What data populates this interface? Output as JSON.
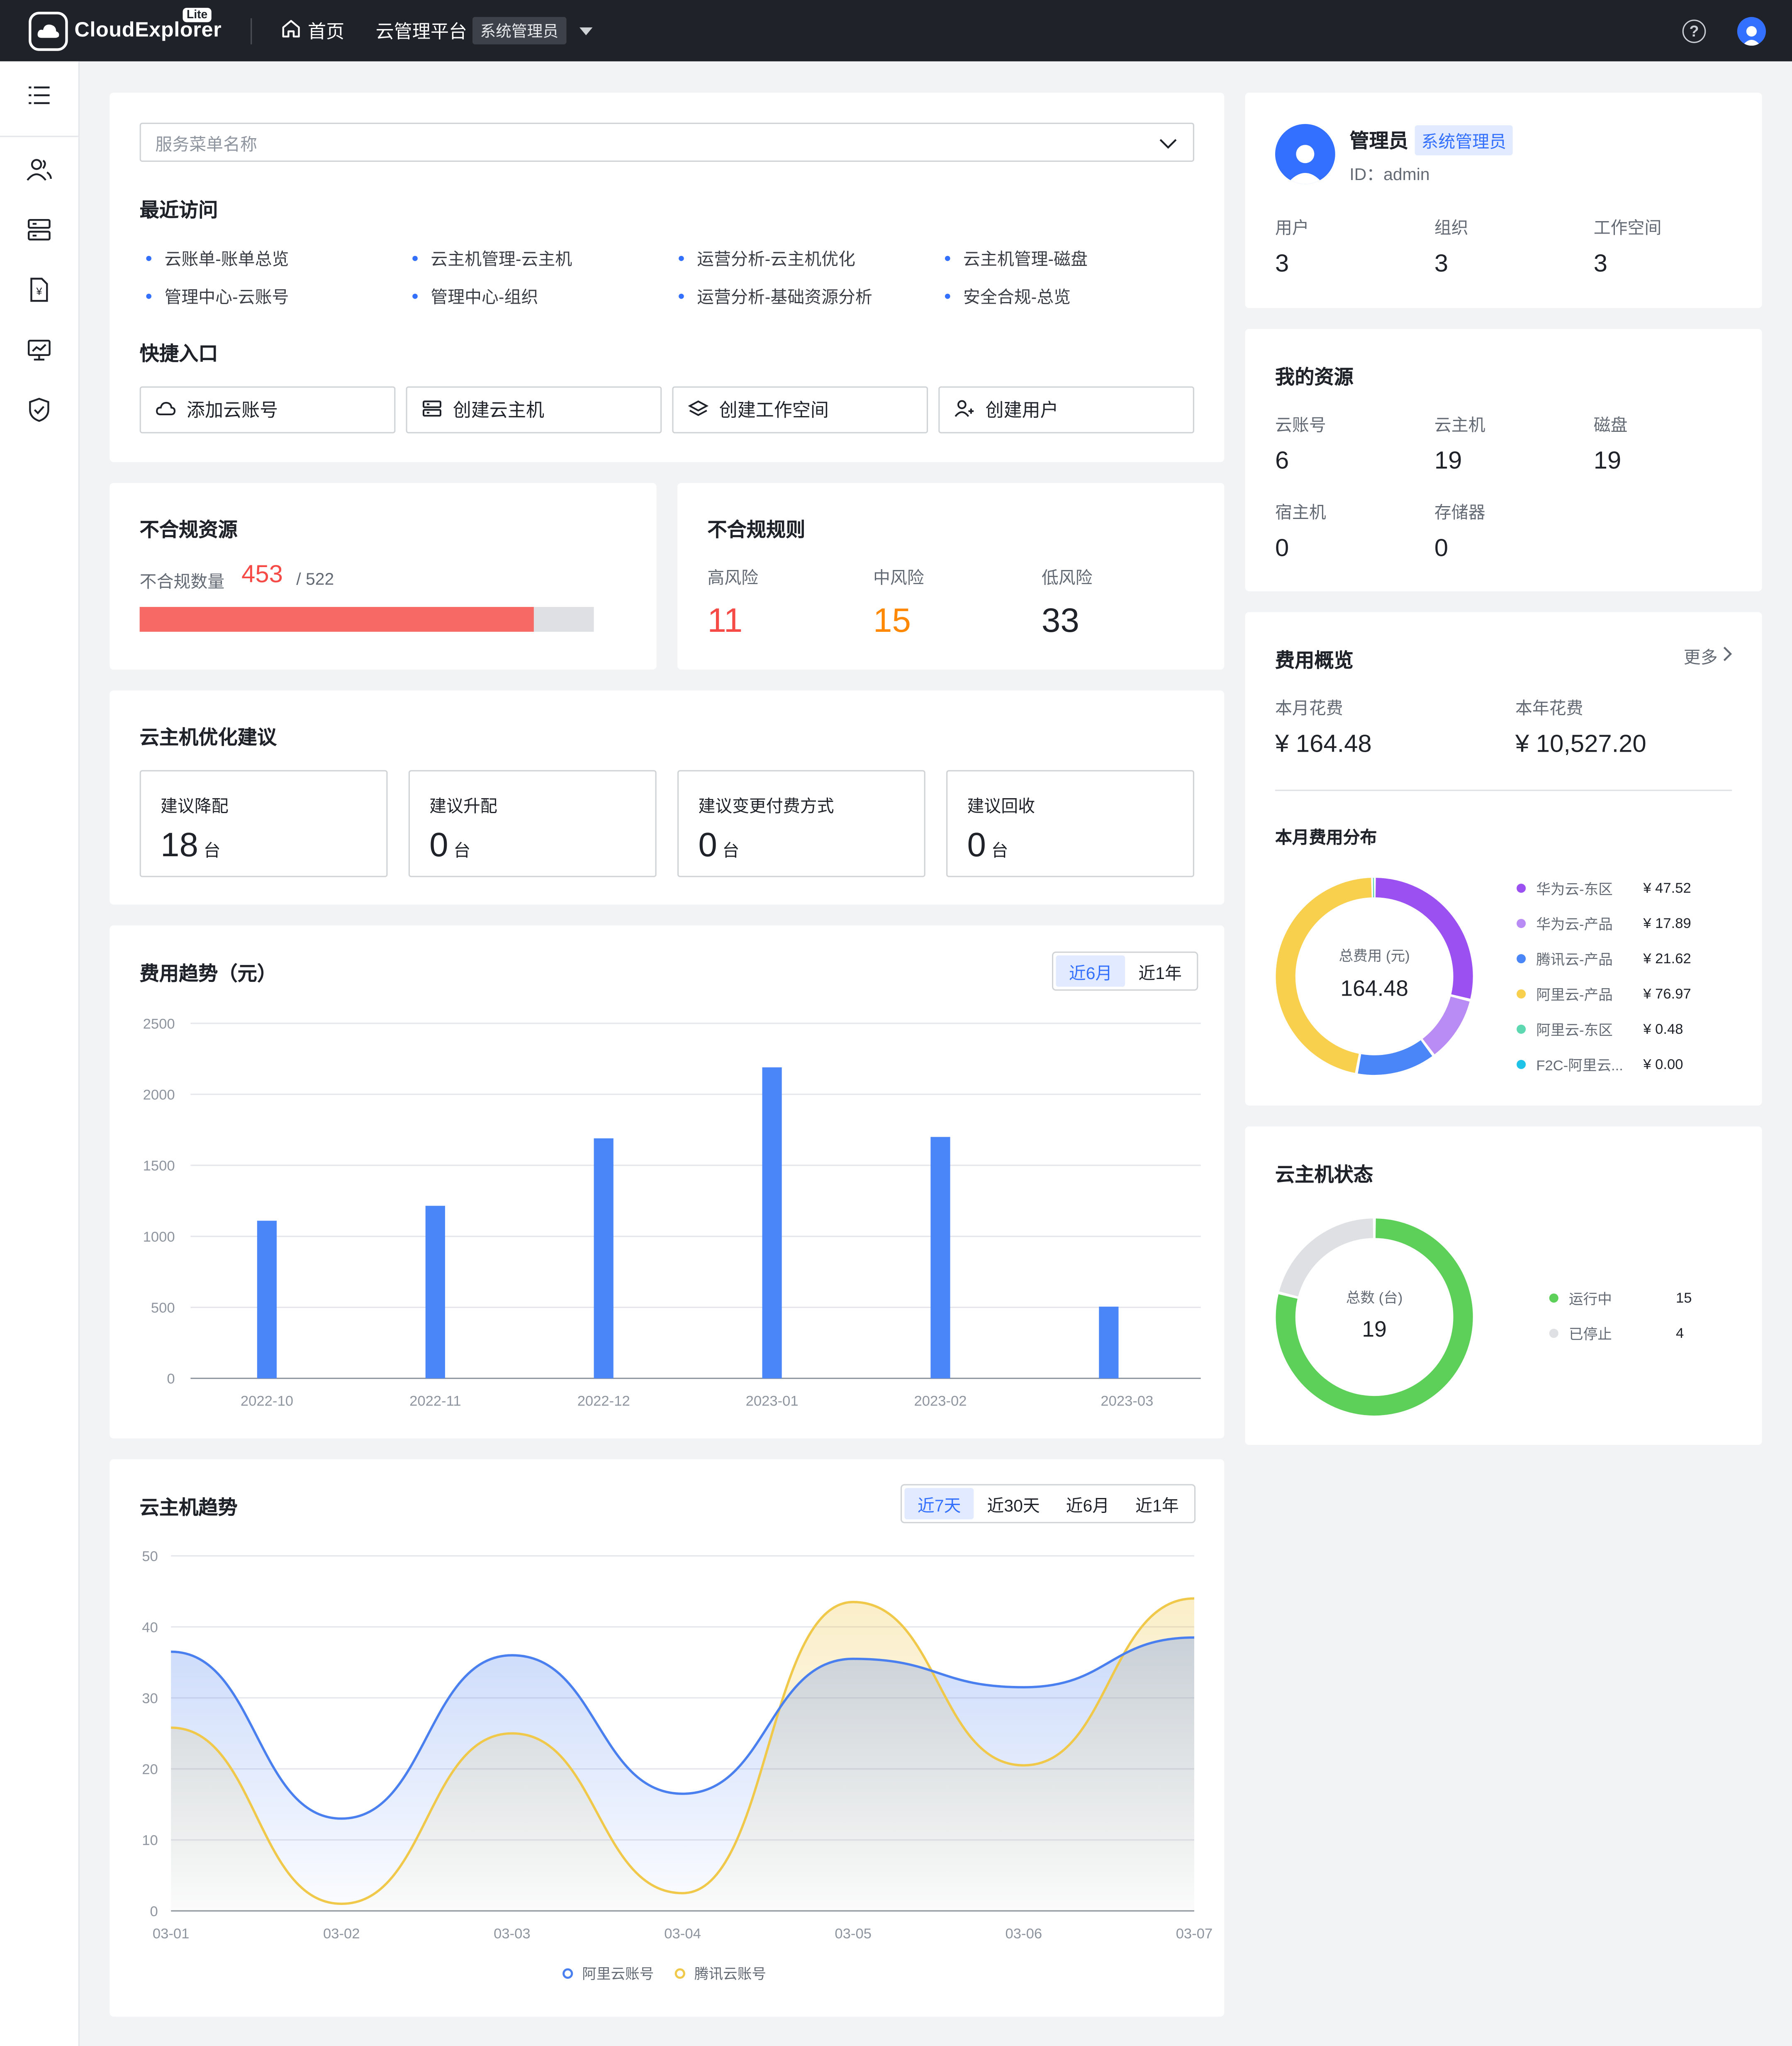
{
  "topbar": {
    "logo_text": "CloudExplorer",
    "logo_badge": "Lite",
    "home_label": "首页",
    "platform_label": "云管理平台",
    "role_chip": "系统管理员"
  },
  "sidebar": {
    "items": [
      {
        "icon": "users-icon"
      },
      {
        "icon": "server-icon"
      },
      {
        "icon": "bill-icon"
      },
      {
        "icon": "monitor-chart-icon"
      },
      {
        "icon": "shield-icon"
      }
    ]
  },
  "services": {
    "search_placeholder": "服务菜单名称",
    "recent_title": "最近访问",
    "recent": [
      "云账单-账单总览",
      "云主机管理-云主机",
      "运营分析-云主机优化",
      "云主机管理-磁盘",
      "管理中心-云账号",
      "管理中心-组织",
      "运营分析-基础资源分析",
      "安全合规-总览"
    ],
    "quick_title": "快捷入口",
    "quick": [
      {
        "label": "添加云账号",
        "icon": "cloud-icon"
      },
      {
        "label": "创建云主机",
        "icon": "server-icon"
      },
      {
        "label": "创建工作空间",
        "icon": "layers-icon"
      },
      {
        "label": "创建用户",
        "icon": "user-add-icon"
      }
    ]
  },
  "noncompliance": {
    "title": "不合规资源",
    "count_label": "不合规数量",
    "count": "453",
    "total": "/ 522",
    "ratio": 0.868,
    "colors": {
      "fill": "#f76964",
      "track": "#dee0e3"
    }
  },
  "rules": {
    "title": "不合规规则",
    "items": [
      {
        "label": "高风险",
        "value": "11",
        "color": "#f54a45"
      },
      {
        "label": "中风险",
        "value": "15",
        "color": "#ff8800"
      },
      {
        "label": "低风险",
        "value": "33",
        "color": "#1f2329"
      }
    ]
  },
  "optimization": {
    "title": "云主机优化建议",
    "items": [
      {
        "label": "建议降配",
        "value": "18",
        "unit": "台"
      },
      {
        "label": "建议升配",
        "value": "0",
        "unit": "台"
      },
      {
        "label": "建议变更付费方式",
        "value": "0",
        "unit": "台"
      },
      {
        "label": "建议回收",
        "value": "0",
        "unit": "台"
      }
    ]
  },
  "cost_trend": {
    "title": "费用趋势（元）",
    "tabs": [
      "近6月",
      "近1年"
    ],
    "active_tab": 0
  },
  "vm_trend": {
    "title": "云主机趋势",
    "tabs": [
      "近7天",
      "近30天",
      "近6月",
      "近1年"
    ],
    "active_tab": 0
  },
  "chart_data": [
    {
      "type": "bar",
      "categories": [
        "2022-10",
        "2022-11",
        "2022-12",
        "2023-01",
        "2023-02",
        "2023-03"
      ],
      "values": [
        1110,
        1215,
        1690,
        2190,
        1700,
        505
      ],
      "ylim": [
        0,
        2500
      ],
      "yticks": [
        0,
        500,
        1000,
        1500,
        2000,
        2500
      ],
      "grid": true,
      "color": "#4a86f7"
    },
    {
      "type": "area",
      "categories": [
        "03-01",
        "03-02",
        "03-03",
        "03-04",
        "03-05",
        "03-06",
        "03-07"
      ],
      "series": [
        {
          "name": "阿里云账号",
          "values": [
            36.5,
            13,
            36,
            16.5,
            35.5,
            31.5,
            38.5
          ],
          "color": "#4a7ff0"
        },
        {
          "name": "腾讯云账号",
          "values": [
            25.8,
            1,
            25,
            2.5,
            43.5,
            20.5,
            44
          ],
          "color": "#f0c84a"
        }
      ],
      "ylim": [
        0,
        50
      ],
      "yticks": [
        0,
        10,
        20,
        30,
        40,
        50
      ],
      "grid": true,
      "legend": "bottom"
    }
  ],
  "profile": {
    "name": "管理员",
    "role": "系统管理员",
    "id_label": "ID：admin",
    "stats": [
      {
        "label": "用户",
        "value": "3"
      },
      {
        "label": "组织",
        "value": "3"
      },
      {
        "label": "工作空间",
        "value": "3"
      }
    ]
  },
  "resources": {
    "title": "我的资源",
    "items": [
      {
        "label": "云账号",
        "value": "6"
      },
      {
        "label": "云主机",
        "value": "19"
      },
      {
        "label": "磁盘",
        "value": "19"
      },
      {
        "label": "宿主机",
        "value": "0"
      },
      {
        "label": "存储器",
        "value": "0"
      }
    ]
  },
  "cost_overview": {
    "title": "费用概览",
    "more": "更多",
    "month_label": "本月花费",
    "month_value": "¥ 164.48",
    "year_label": "本年花费",
    "year_value": "¥ 10,527.20",
    "dist_title": "本月费用分布",
    "donut_label": "总费用 (元)",
    "donut_value": "164.48",
    "slices": [
      {
        "name": "华为云-东区",
        "value": 47.52,
        "display": "¥ 47.52",
        "color": "#9b51f2"
      },
      {
        "name": "华为云-产品",
        "value": 17.89,
        "display": "¥ 17.89",
        "color": "#b98cf5"
      },
      {
        "name": "腾讯云-产品",
        "value": 21.62,
        "display": "¥ 21.62",
        "color": "#4a86f7"
      },
      {
        "name": "阿里云-产品",
        "value": 76.97,
        "display": "¥ 76.97",
        "color": "#f8d04e"
      },
      {
        "name": "阿里云-东区",
        "value": 0.48,
        "display": "¥ 0.48",
        "color": "#5ed8b0"
      },
      {
        "name": "F2C-阿里云...",
        "value": 0.0,
        "display": "¥ 0.00",
        "color": "#20c3e8"
      }
    ]
  },
  "vm_status": {
    "title": "云主机状态",
    "donut_label": "总数 (台)",
    "donut_value": "19",
    "slices": [
      {
        "name": "运行中",
        "value": 15,
        "color": "#5dd05a"
      },
      {
        "name": "已停止",
        "value": 4,
        "color": "#dee0e3"
      }
    ]
  }
}
